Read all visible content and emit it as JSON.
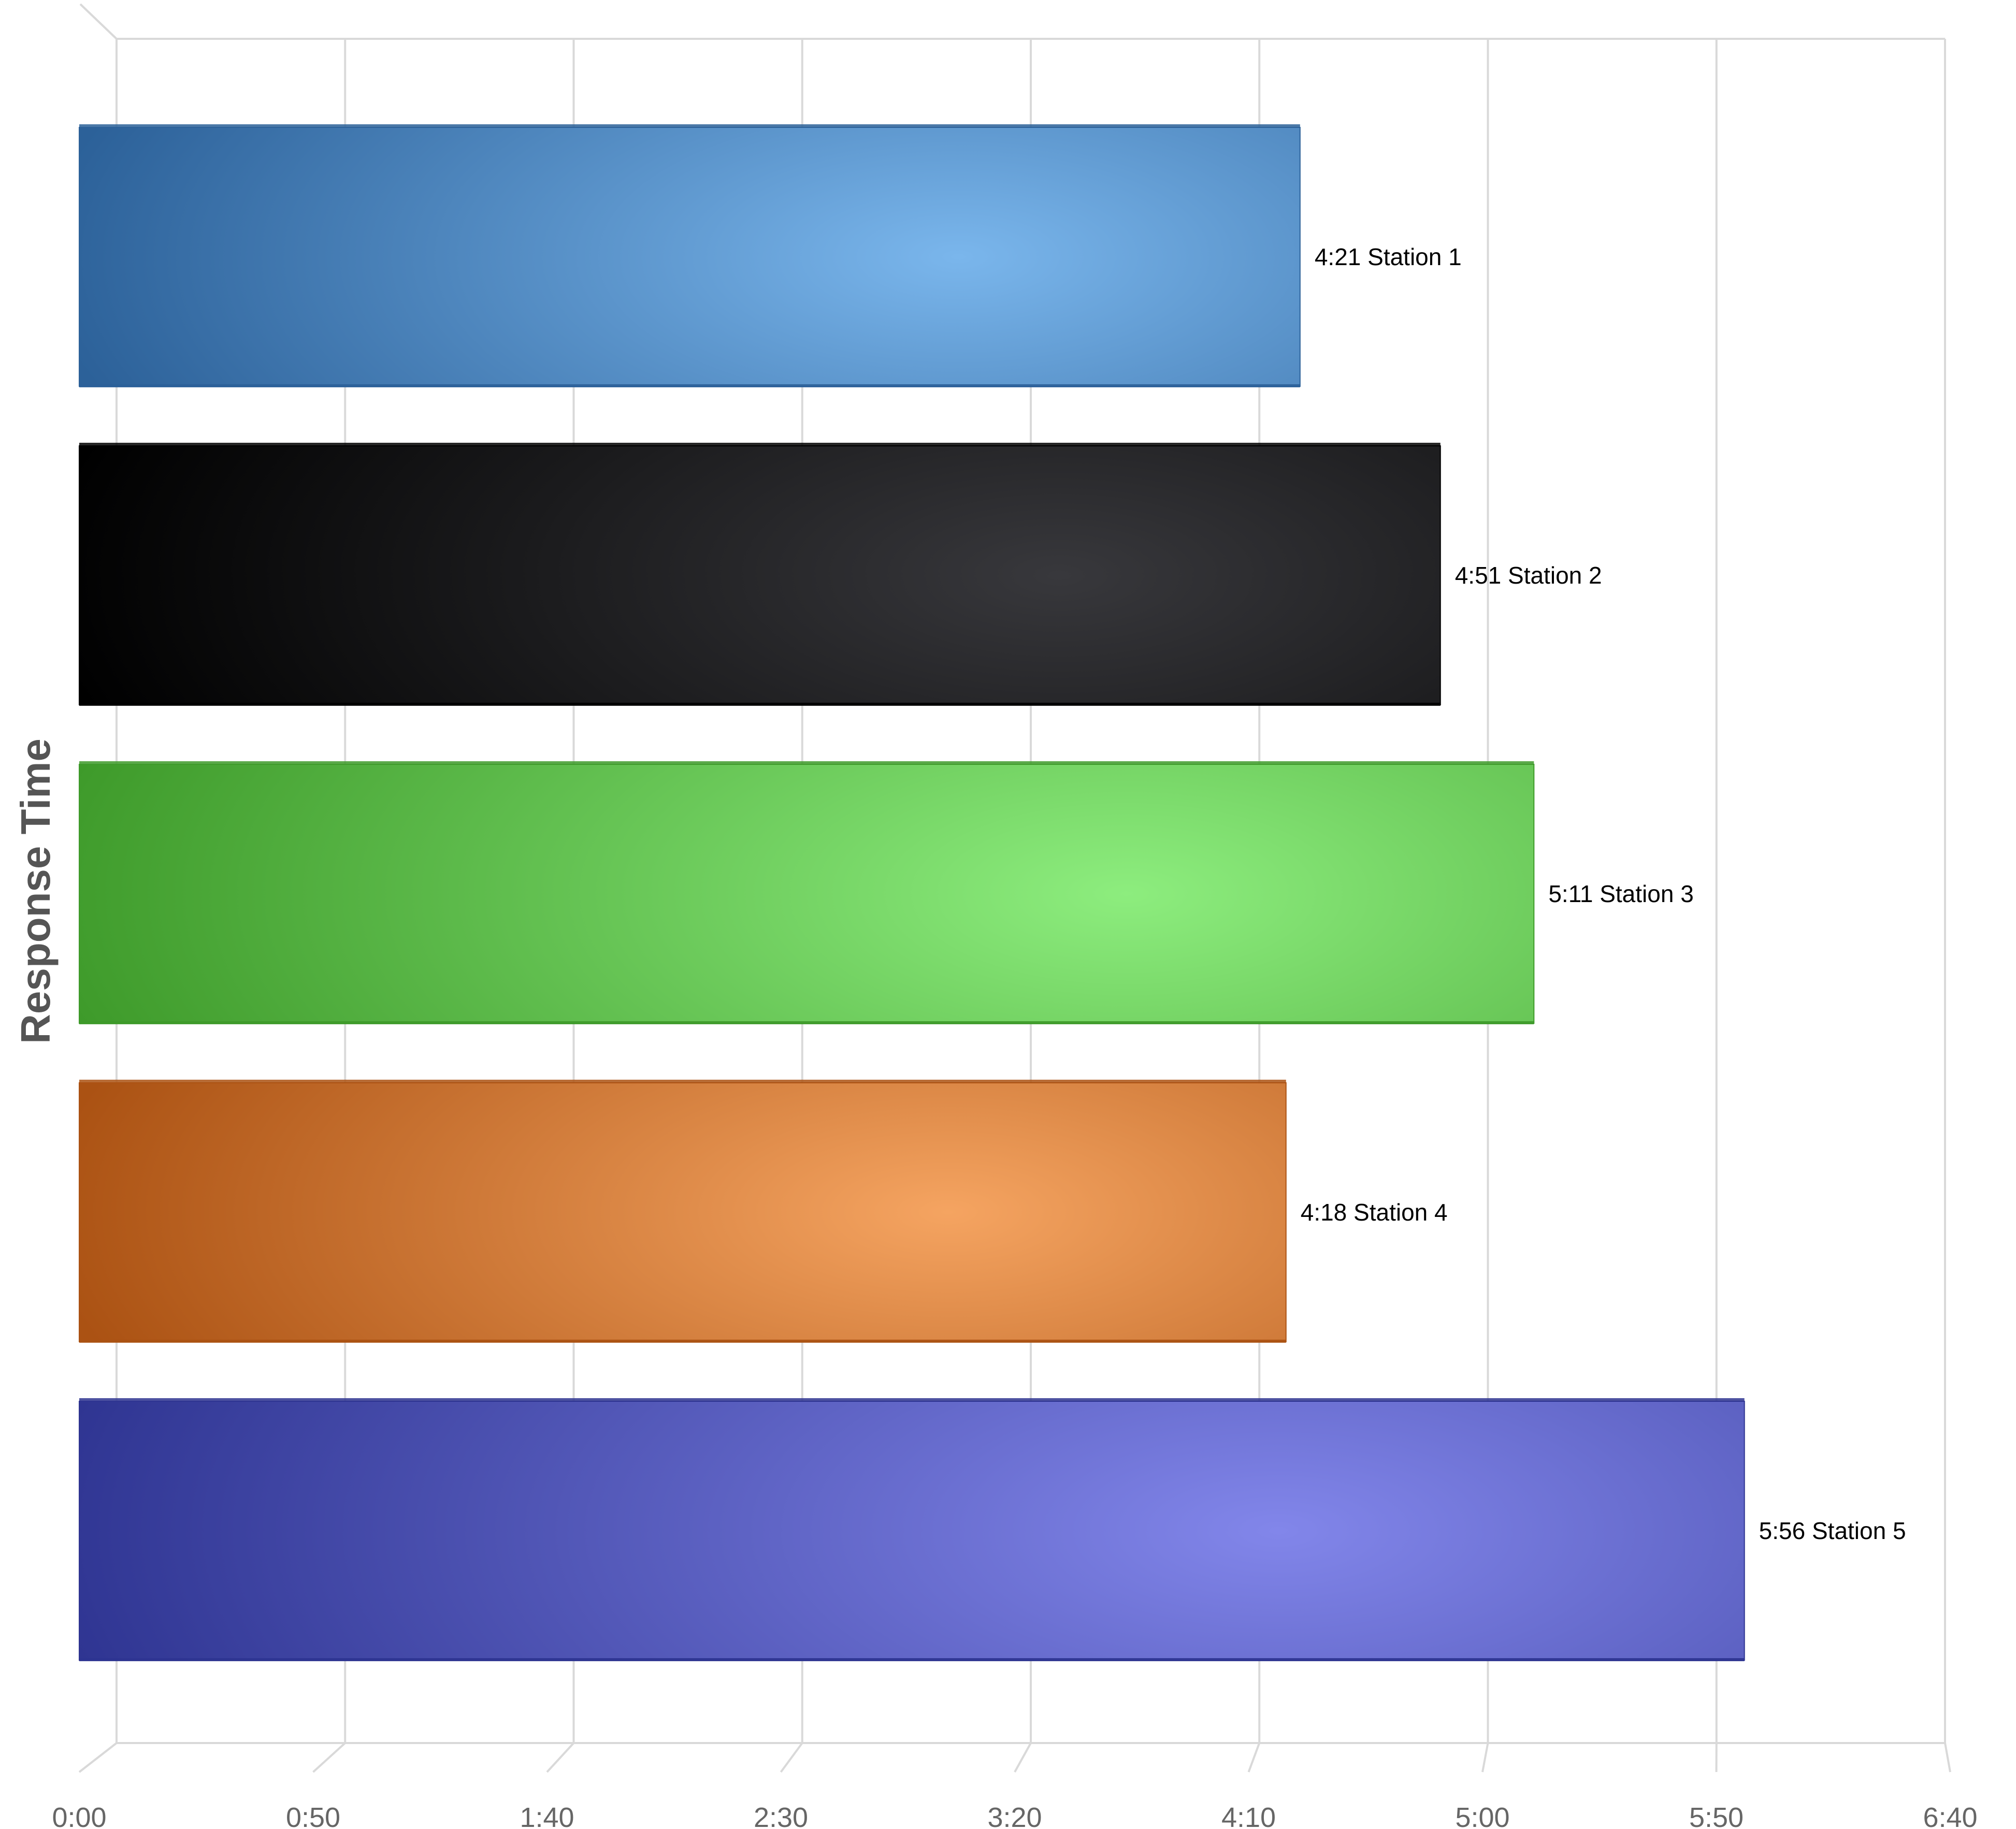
{
  "chart_data": {
    "type": "bar",
    "orientation": "horizontal",
    "style": "3d",
    "ylabel": "Response Time",
    "xlabel": "",
    "xlim": [
      0,
      400
    ],
    "x_unit": "seconds",
    "x_ticks": [
      {
        "value": 0,
        "label": "0:00"
      },
      {
        "value": 50,
        "label": "0:50"
      },
      {
        "value": 100,
        "label": "1:40"
      },
      {
        "value": 150,
        "label": "2:30"
      },
      {
        "value": 200,
        "label": "3:20"
      },
      {
        "value": 250,
        "label": "4:10"
      },
      {
        "value": 300,
        "label": "5:00"
      },
      {
        "value": 350,
        "label": "5:50"
      },
      {
        "value": 400,
        "label": "6:40"
      }
    ],
    "grid": true,
    "legend": "none",
    "bars": [
      {
        "category": "Station 1",
        "value": 261,
        "label": "4:21 Station 1",
        "colors": {
          "dark": "#2c6199",
          "light": "#7ab6ec"
        }
      },
      {
        "category": "Station 2",
        "value": 291,
        "label": "4:51 Station 2",
        "colors": {
          "dark": "#000000",
          "light": "#38383c"
        }
      },
      {
        "category": "Station 3",
        "value": 311,
        "label": "5:11 Station 3",
        "colors": {
          "dark": "#3e9a2a",
          "light": "#8ded7e"
        }
      },
      {
        "category": "Station 4",
        "value": 258,
        "label": "4:18 Station 4",
        "colors": {
          "dark": "#ab5213",
          "light": "#f5a461"
        }
      },
      {
        "category": "Station 5",
        "value": 356,
        "label": "5:56 Station 5",
        "colors": {
          "dark": "#2e3491",
          "light": "#8286ea"
        }
      }
    ]
  }
}
